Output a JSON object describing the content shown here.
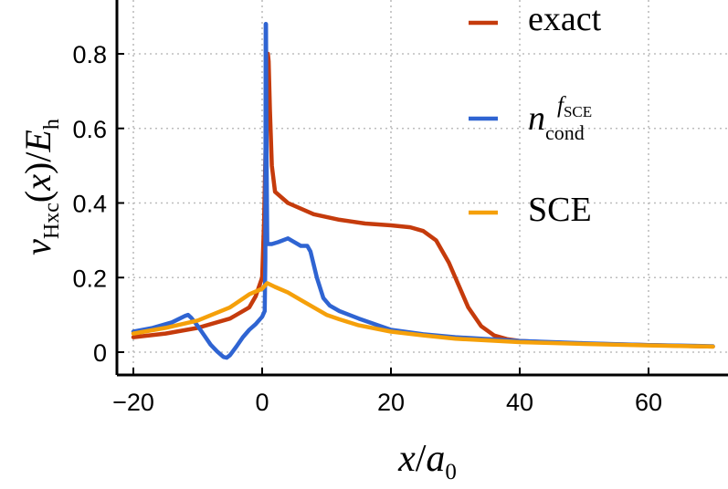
{
  "chart_data": {
    "type": "line",
    "xlabel": "x/a0",
    "ylabel": "vHxc(x)/Eh",
    "xlim": [
      -21.5,
      74
    ],
    "ylim": [
      -0.065,
      0.94
    ],
    "x_ticks": [
      -20,
      0,
      20,
      40,
      60
    ],
    "x_tick_labels": [
      "−20",
      "0",
      "20",
      "40",
      "60"
    ],
    "y_ticks": [
      0,
      0.2,
      0.4,
      0.6,
      0.8
    ],
    "y_tick_labels": [
      "0",
      "0.2",
      "0.4",
      "0.6",
      "0.8"
    ],
    "grid": true,
    "legend_position": "top-right",
    "series": [
      {
        "name": "exact",
        "color": "#c53b0c",
        "points": [
          [
            -20,
            0.04
          ],
          [
            -15,
            0.05
          ],
          [
            -10,
            0.065
          ],
          [
            -5,
            0.09
          ],
          [
            -2,
            0.12
          ],
          [
            -1,
            0.15
          ],
          [
            0,
            0.2
          ],
          [
            0.3,
            0.35
          ],
          [
            0.6,
            0.6
          ],
          [
            0.8,
            0.75
          ],
          [
            0.9,
            0.8
          ],
          [
            1.0,
            0.78
          ],
          [
            1.2,
            0.65
          ],
          [
            1.5,
            0.5
          ],
          [
            2,
            0.43
          ],
          [
            4,
            0.4
          ],
          [
            8,
            0.37
          ],
          [
            12,
            0.355
          ],
          [
            16,
            0.345
          ],
          [
            20,
            0.34
          ],
          [
            23,
            0.335
          ],
          [
            25,
            0.325
          ],
          [
            27,
            0.3
          ],
          [
            29,
            0.24
          ],
          [
            30.5,
            0.18
          ],
          [
            32,
            0.12
          ],
          [
            34,
            0.07
          ],
          [
            36,
            0.045
          ],
          [
            38,
            0.035
          ],
          [
            40,
            0.03
          ],
          [
            45,
            0.026
          ],
          [
            50,
            0.023
          ],
          [
            60,
            0.019
          ],
          [
            70,
            0.015
          ]
        ]
      },
      {
        "name": "n_cond^{f_SCE}",
        "color": "#2f64d2",
        "points": [
          [
            -20,
            0.055
          ],
          [
            -17,
            0.065
          ],
          [
            -14,
            0.08
          ],
          [
            -12,
            0.097
          ],
          [
            -11.5,
            0.1
          ],
          [
            -11,
            0.092
          ],
          [
            -10,
            0.07
          ],
          [
            -9,
            0.045
          ],
          [
            -8,
            0.02
          ],
          [
            -7,
            0.002
          ],
          [
            -6,
            -0.013
          ],
          [
            -5.5,
            -0.015
          ],
          [
            -5,
            -0.008
          ],
          [
            -4,
            0.015
          ],
          [
            -3,
            0.04
          ],
          [
            -2,
            0.06
          ],
          [
            -1,
            0.075
          ],
          [
            0,
            0.095
          ],
          [
            0.4,
            0.11
          ],
          [
            0.5,
            0.25
          ],
          [
            0.55,
            0.88
          ],
          [
            0.6,
            0.88
          ],
          [
            0.7,
            0.5
          ],
          [
            0.8,
            0.29
          ],
          [
            1.5,
            0.29
          ],
          [
            2.5,
            0.295
          ],
          [
            4,
            0.305
          ],
          [
            5,
            0.295
          ],
          [
            6,
            0.285
          ],
          [
            7,
            0.285
          ],
          [
            7.5,
            0.27
          ],
          [
            8.5,
            0.2
          ],
          [
            9.5,
            0.145
          ],
          [
            10.5,
            0.125
          ],
          [
            12,
            0.11
          ],
          [
            15,
            0.09
          ],
          [
            20,
            0.06
          ],
          [
            25,
            0.048
          ],
          [
            30,
            0.04
          ],
          [
            40,
            0.03
          ],
          [
            50,
            0.024
          ],
          [
            60,
            0.019
          ],
          [
            70,
            0.016
          ]
        ]
      },
      {
        "name": "SCE",
        "color": "#f5a00a",
        "points": [
          [
            -20,
            0.05
          ],
          [
            -15,
            0.065
          ],
          [
            -10,
            0.085
          ],
          [
            -5,
            0.12
          ],
          [
            -2,
            0.155
          ],
          [
            0,
            0.17
          ],
          [
            0.8,
            0.185
          ],
          [
            2,
            0.175
          ],
          [
            4,
            0.16
          ],
          [
            6,
            0.14
          ],
          [
            8,
            0.12
          ],
          [
            10,
            0.1
          ],
          [
            12,
            0.088
          ],
          [
            15,
            0.072
          ],
          [
            20,
            0.055
          ],
          [
            25,
            0.045
          ],
          [
            30,
            0.036
          ],
          [
            40,
            0.027
          ],
          [
            50,
            0.022
          ],
          [
            60,
            0.018
          ],
          [
            70,
            0.015
          ]
        ]
      }
    ]
  }
}
